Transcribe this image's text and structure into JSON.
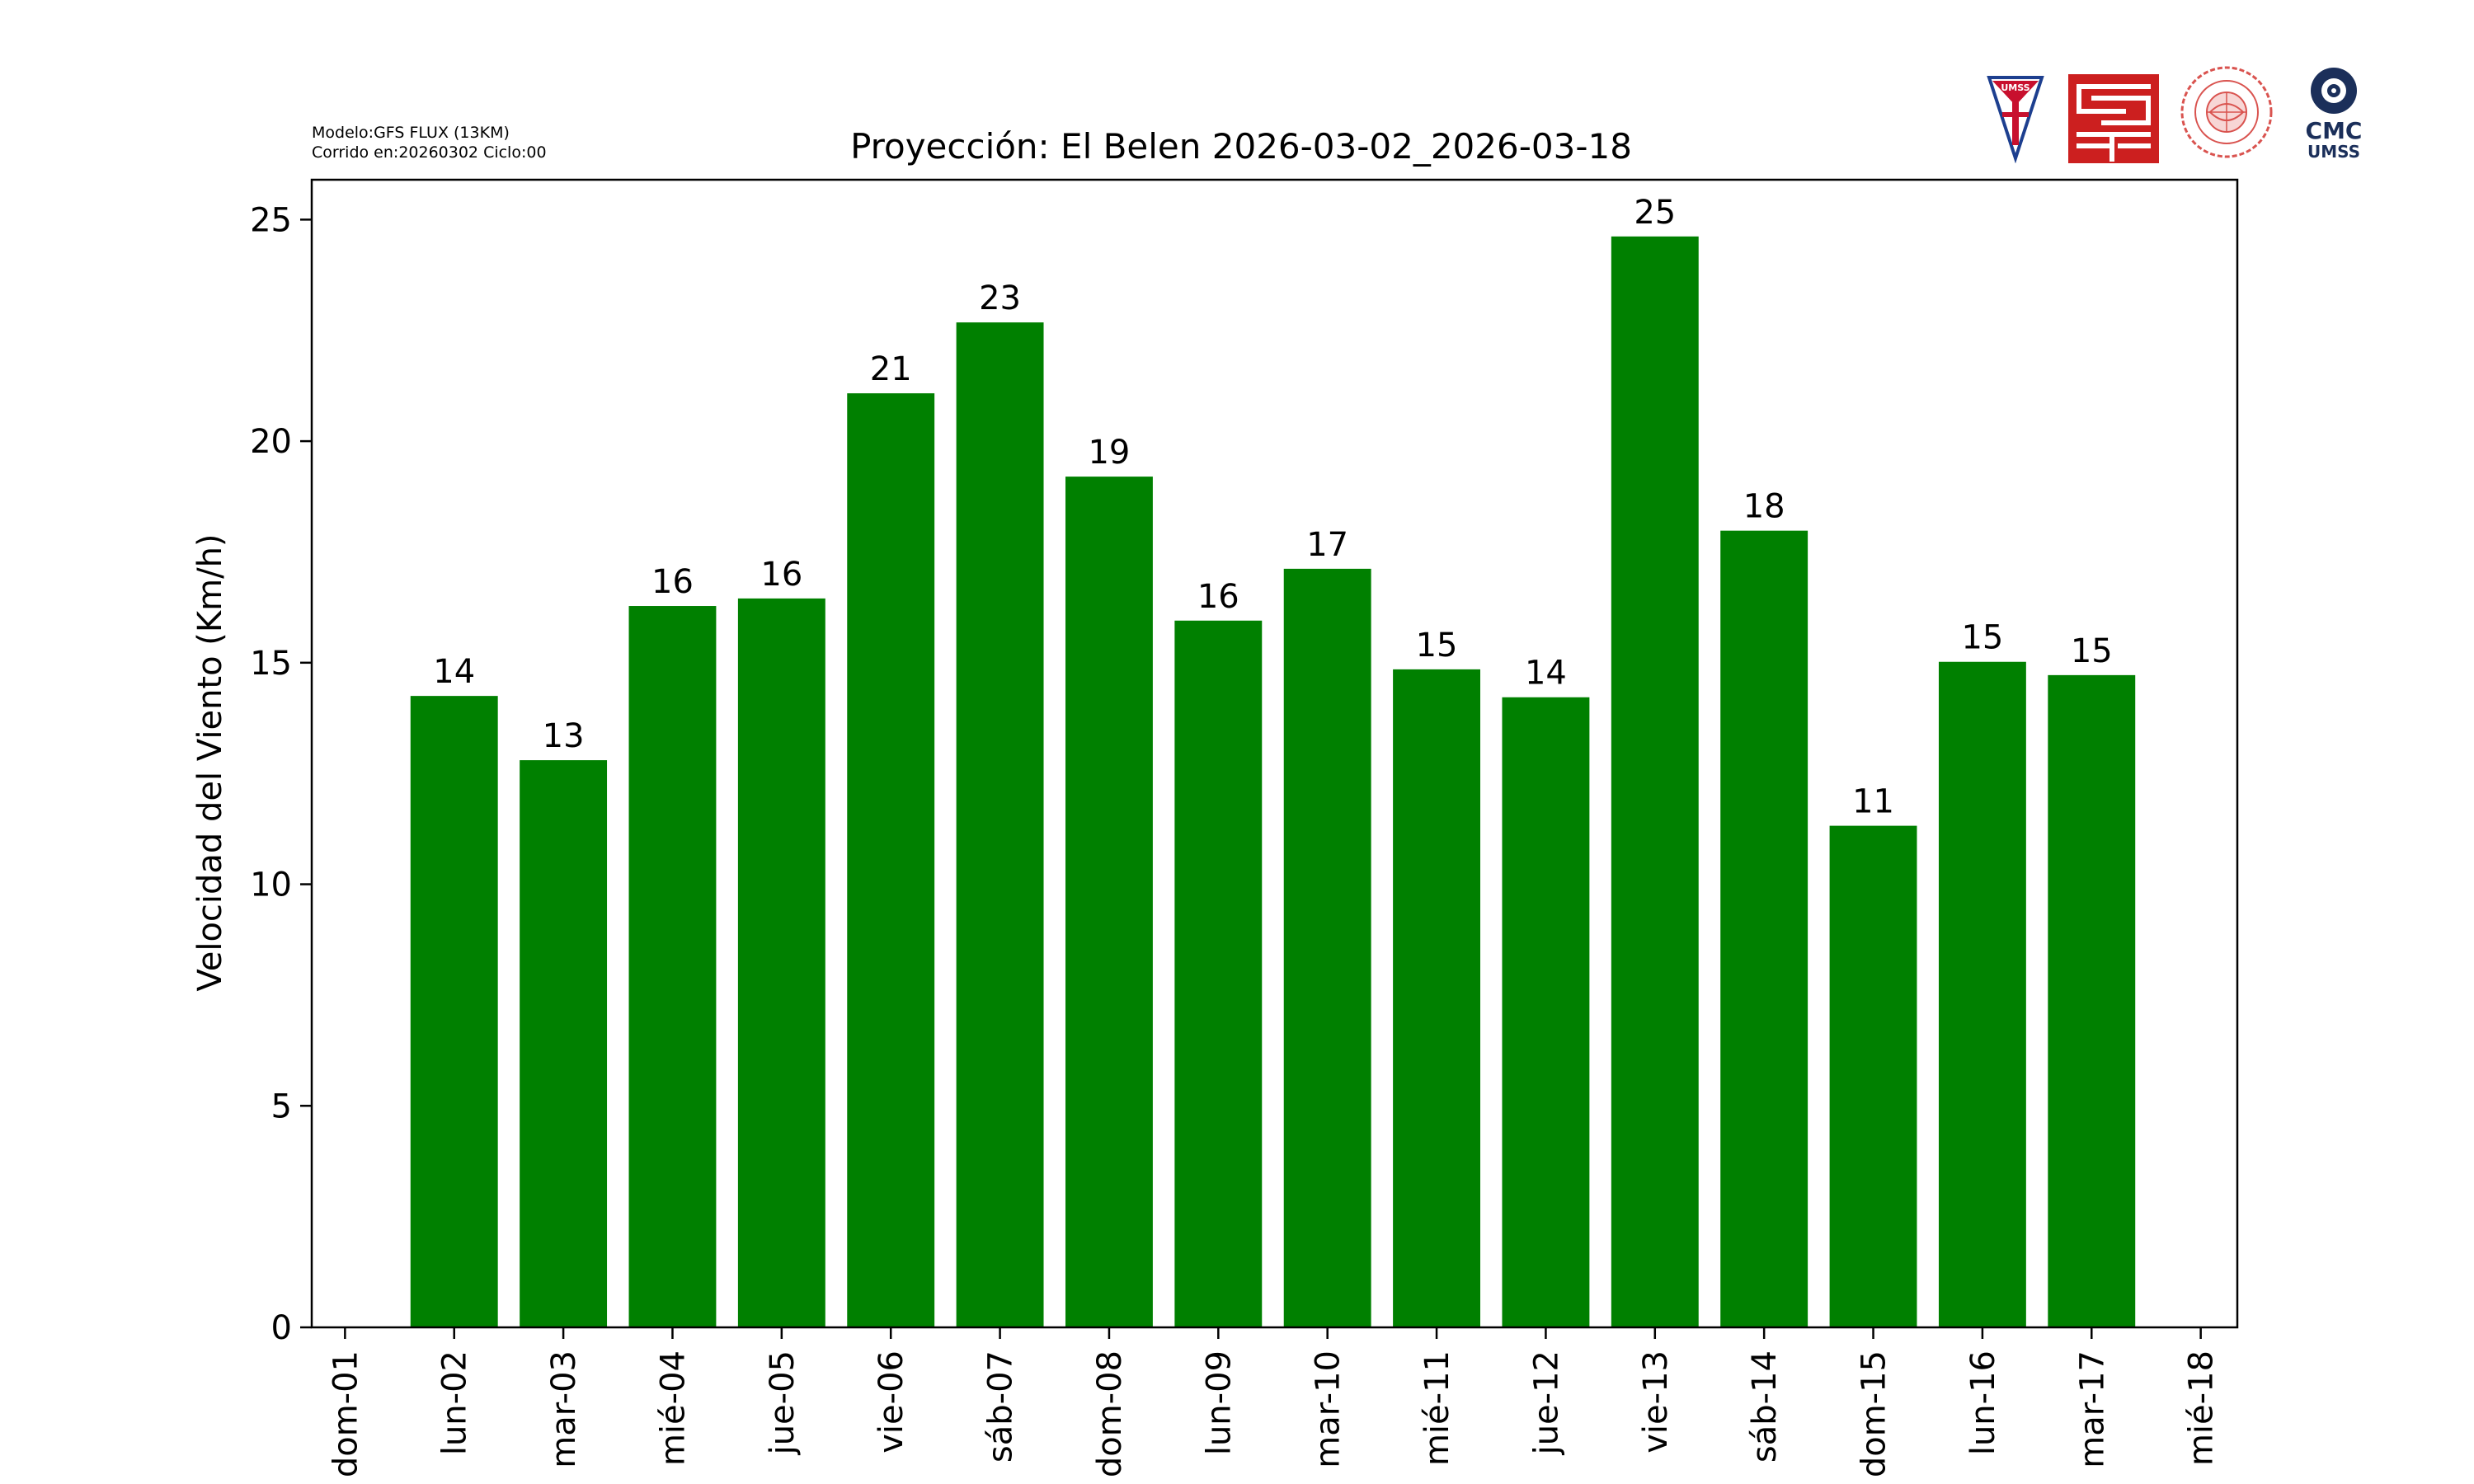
{
  "meta": {
    "model": "Modelo:GFS FLUX (13KM)",
    "run": "Corrido en:20260302 Ciclo:00"
  },
  "logos": {
    "umss": "UMSS",
    "cmc": "CMC",
    "cmc_sub": "UMSS"
  },
  "chart_data": {
    "type": "bar",
    "title": "Proyección: El Belen  2026-03-02_2026-03-18",
    "xlabel": "",
    "ylabel": "Velocidad del Viento (Km/h)",
    "ylim": [
      0,
      25.9
    ],
    "yticks": [
      0,
      5,
      10,
      15,
      20,
      25
    ],
    "x_ticks": [
      "dom-01",
      "lun-02",
      "mar-03",
      "mié-04",
      "jue-05",
      "vie-06",
      "sáb-07",
      "dom-08",
      "lun-09",
      "mar-10",
      "mié-11",
      "jue-12",
      "vie-13",
      "sáb-14",
      "dom-15",
      "lun-16",
      "mar-17",
      "mié-18"
    ],
    "categories": [
      "lun-02",
      "mar-03",
      "mié-04",
      "jue-05",
      "vie-06",
      "sáb-07",
      "dom-08",
      "lun-09",
      "mar-10",
      "mié-11",
      "jue-12",
      "vie-13",
      "sáb-14",
      "dom-15",
      "lun-16",
      "mar-17"
    ],
    "values": [
      14.25,
      12.8,
      16.28,
      16.45,
      21.08,
      22.68,
      19.2,
      15.95,
      17.12,
      14.85,
      14.22,
      24.62,
      17.98,
      11.32,
      15.02,
      14.72
    ],
    "data_labels": [
      "14",
      "13",
      "16",
      "16",
      "21",
      "23",
      "19",
      "16",
      "17",
      "15",
      "14",
      "25",
      "18",
      "11",
      "15",
      "15"
    ],
    "bar_color": "#008000",
    "grid": false,
    "legend": "none"
  }
}
